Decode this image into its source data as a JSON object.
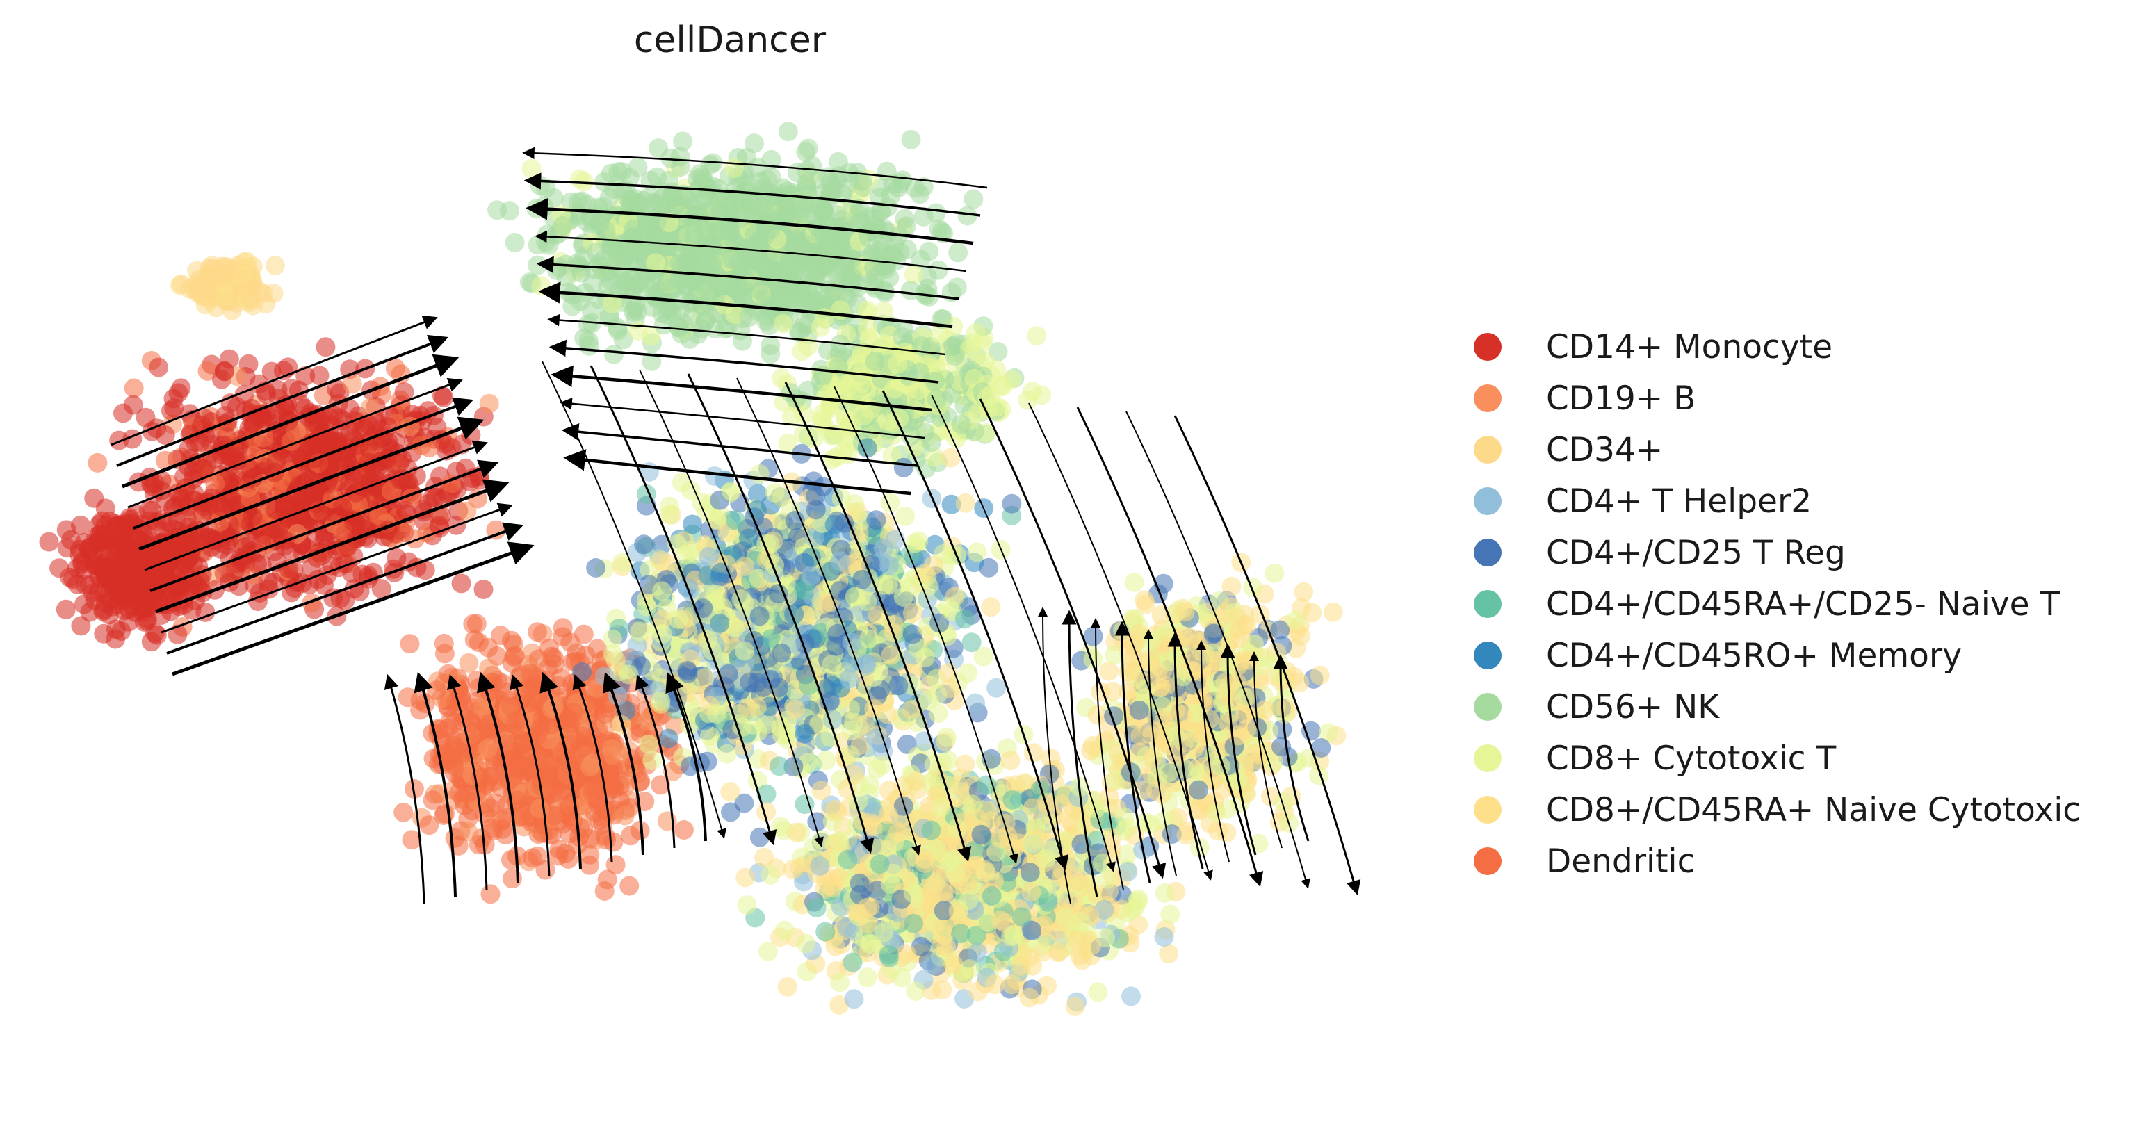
{
  "chart_data": {
    "type": "scatter",
    "title": "cellDancer",
    "xlabel": "",
    "ylabel": "",
    "axes_visible": false,
    "grid": false,
    "legend_position": "right",
    "overlay": "velocity streamlines with arrowheads",
    "series": [
      {
        "name": "CD14+ Monocyte",
        "color": "#d73027"
      },
      {
        "name": "CD19+ B",
        "color": "#f88f5c"
      },
      {
        "name": "CD34+",
        "color": "#fdd98a"
      },
      {
        "name": "CD4+ T Helper2",
        "color": "#91bfdb"
      },
      {
        "name": "CD4+/CD25 T Reg",
        "color": "#4575b4"
      },
      {
        "name": "CD4+/CD45RA+/CD25- Naive T",
        "color": "#66c2a5"
      },
      {
        "name": "CD4+/CD45RO+ Memory",
        "color": "#3288bd"
      },
      {
        "name": "CD56+ NK",
        "color": "#a6dba0"
      },
      {
        "name": "CD8+ Cytotoxic T",
        "color": "#e6f598"
      },
      {
        "name": "CD8+/CD45RA+ Naive Cytotoxic",
        "color": "#fee08b"
      },
      {
        "name": "Dendritic",
        "color": "#f46d43"
      }
    ]
  }
}
